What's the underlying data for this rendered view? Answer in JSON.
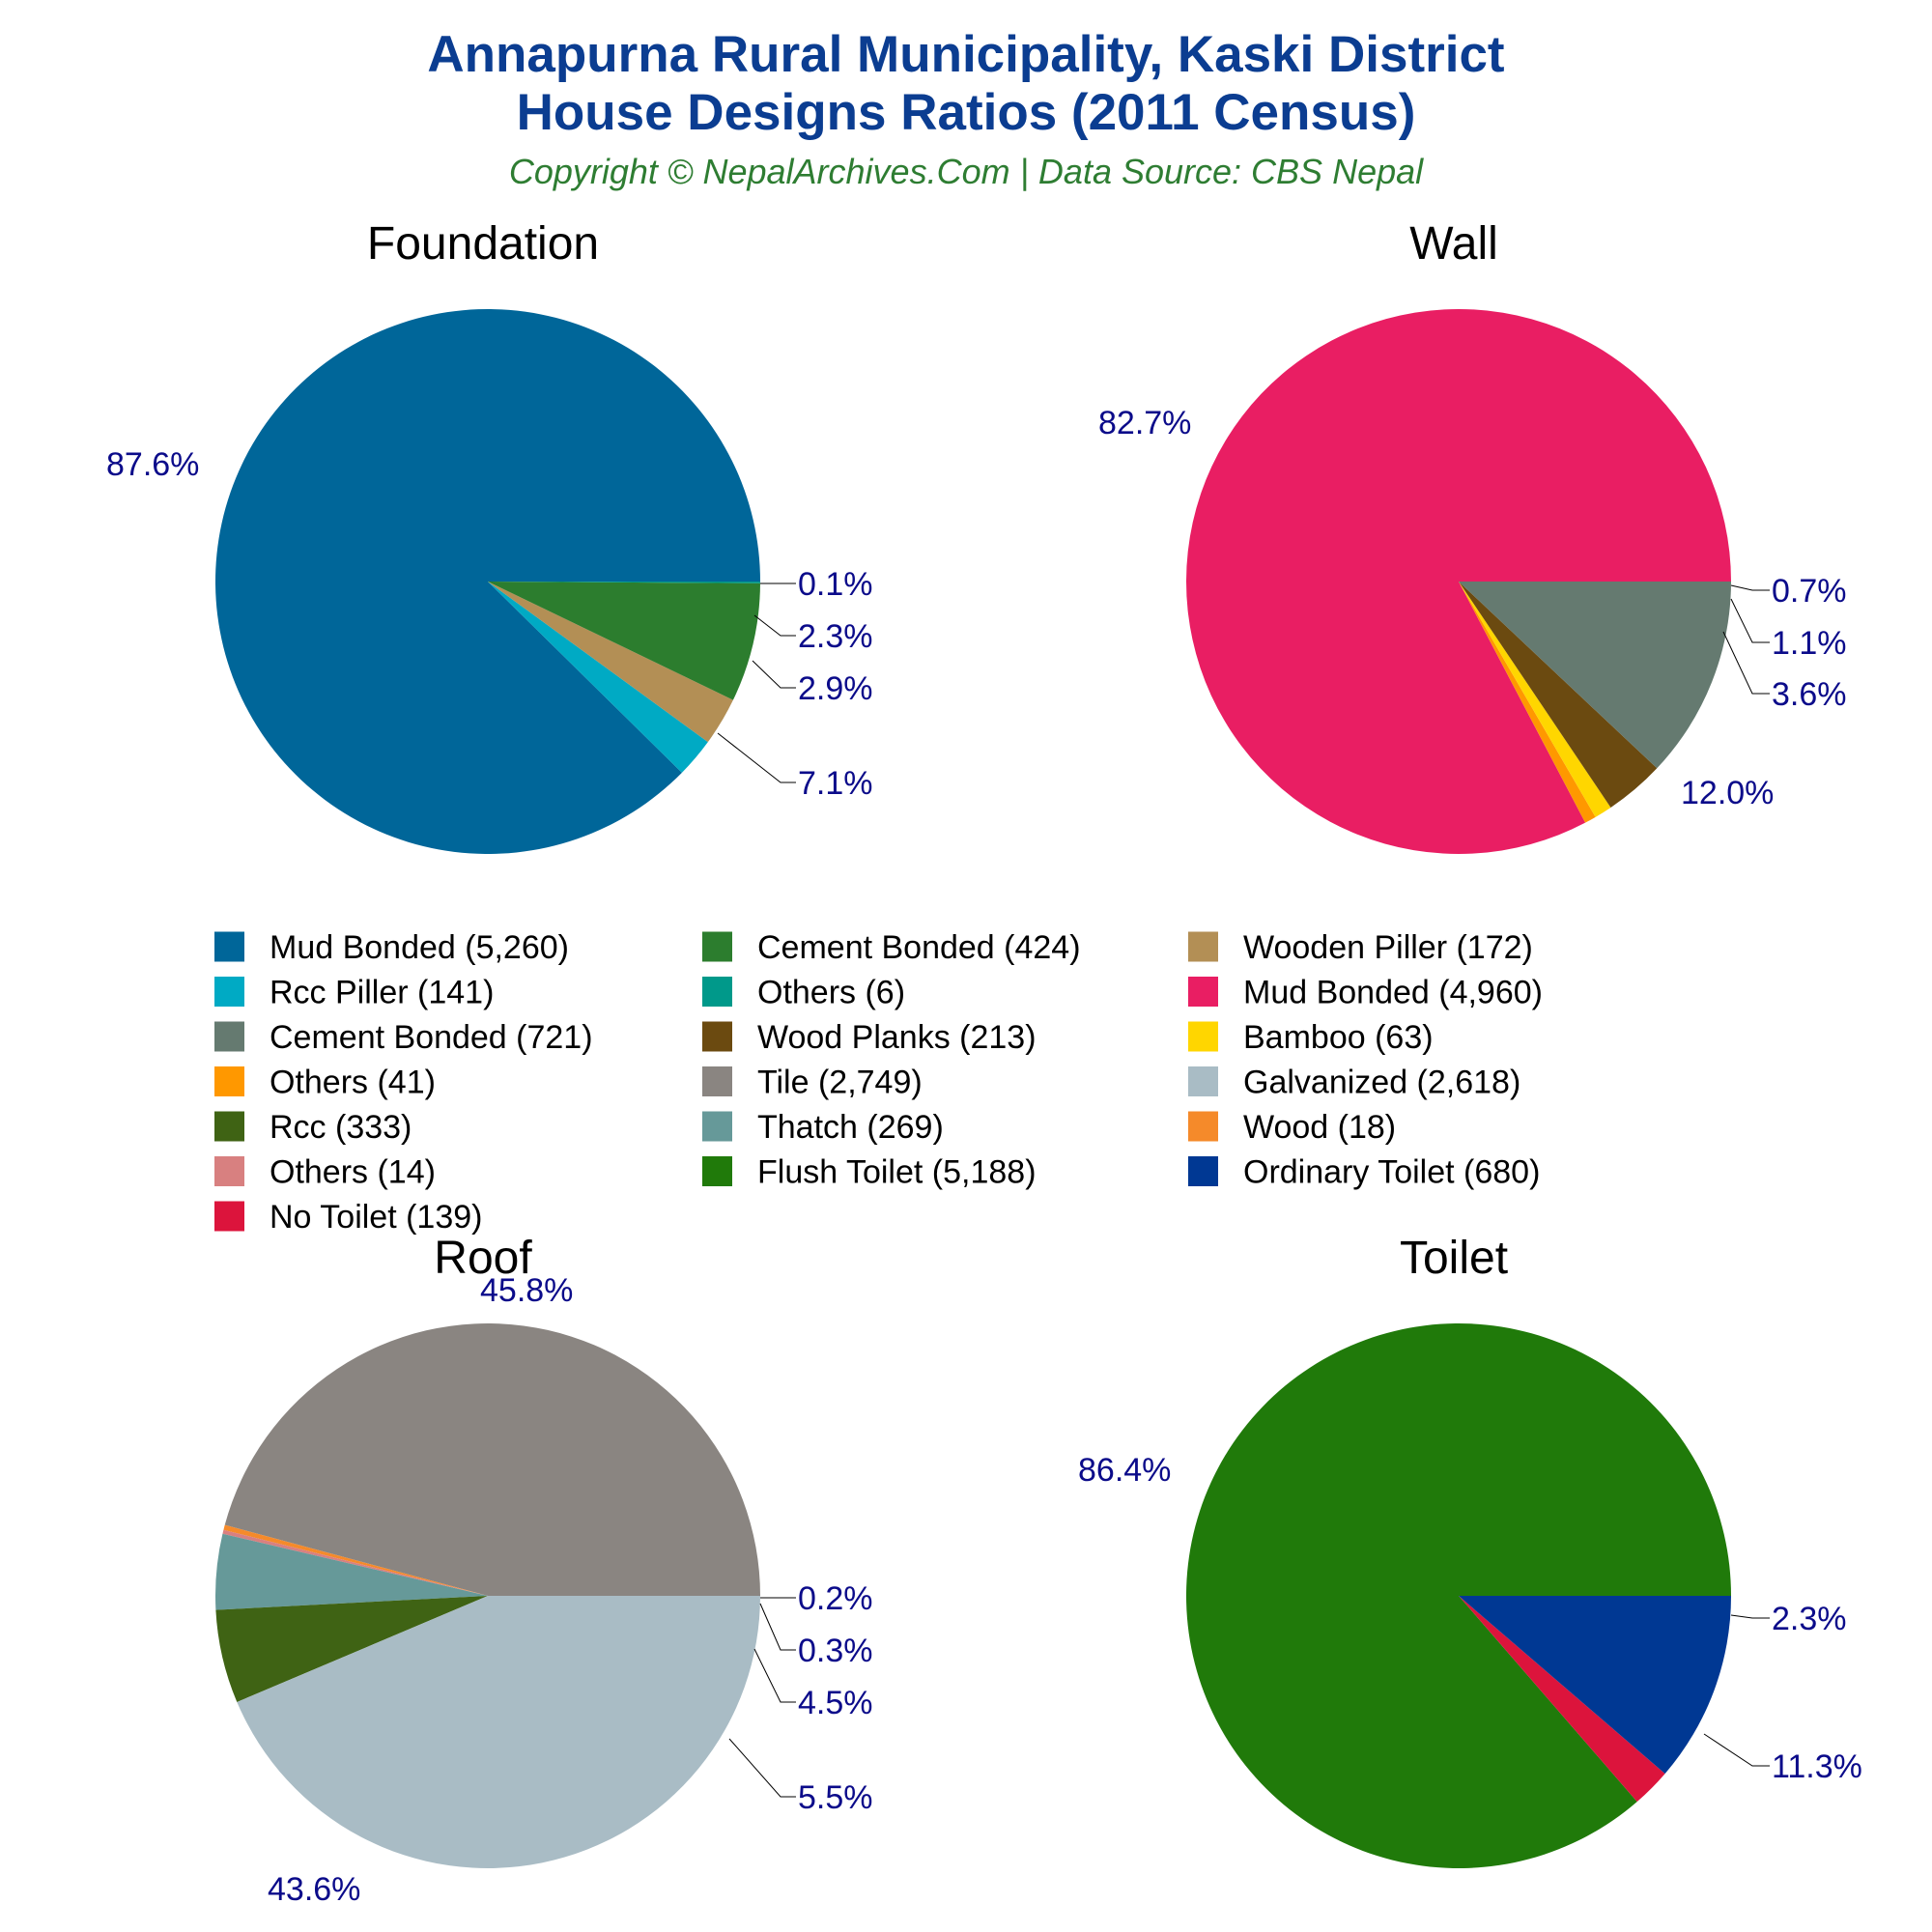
{
  "title_line1": "Annapurna Rural Municipality, Kaski District",
  "title_line2": "House Designs Ratios (2011 Census)",
  "subtitle": "Copyright © NepalArchives.Com | Data Source: CBS Nepal",
  "colors": {
    "title": "#0B3D91",
    "subtitle": "#2E7D32",
    "percent_label": "#0B0B8A"
  },
  "chart_data": [
    {
      "type": "pie",
      "title": "Foundation",
      "slices": [
        {
          "name": "Mud Bonded",
          "value": 5260,
          "percent": "87.6%",
          "color": "#006699"
        },
        {
          "name": "Rcc Piller",
          "value": 141,
          "percent": "2.3%",
          "color": "#00AAC4"
        },
        {
          "name": "Wooden Piller",
          "value": 172,
          "percent": "2.9%",
          "color": "#B38F55"
        },
        {
          "name": "Cement Bonded",
          "value": 424,
          "percent": "7.1%",
          "color": "#2C7D2E"
        },
        {
          "name": "Others",
          "value": 6,
          "percent": "0.1%",
          "color": "#00998A"
        }
      ]
    },
    {
      "type": "pie",
      "title": "Wall",
      "slices": [
        {
          "name": "Mud Bonded",
          "value": 4960,
          "percent": "82.7%",
          "color": "#E91E63"
        },
        {
          "name": "Others",
          "value": 41,
          "percent": "0.7%",
          "color": "#FF9800"
        },
        {
          "name": "Bamboo",
          "value": 63,
          "percent": "1.1%",
          "color": "#FFD600"
        },
        {
          "name": "Wood Planks",
          "value": 213,
          "percent": "3.6%",
          "color": "#6B4A10"
        },
        {
          "name": "Cement Bonded",
          "value": 721,
          "percent": "12.0%",
          "color": "#657A70"
        }
      ]
    },
    {
      "type": "pie",
      "title": "Roof",
      "slices": [
        {
          "name": "Tile",
          "value": 2749,
          "percent": "45.8%",
          "color": "#8A8581"
        },
        {
          "name": "Wood",
          "value": 18,
          "percent": "0.3%",
          "color": "#F58A2A"
        },
        {
          "name": "Others",
          "value": 14,
          "percent": "0.2%",
          "color": "#D88080"
        },
        {
          "name": "Thatch",
          "value": 269,
          "percent": "4.5%",
          "color": "#669999"
        },
        {
          "name": "Rcc",
          "value": 333,
          "percent": "5.5%",
          "color": "#3F6314"
        },
        {
          "name": "Galvanized",
          "value": 2618,
          "percent": "43.6%",
          "color": "#A9BCC5"
        }
      ]
    },
    {
      "type": "pie",
      "title": "Toilet",
      "slices": [
        {
          "name": "Flush Toilet",
          "value": 5188,
          "percent": "86.4%",
          "color": "#207A0A"
        },
        {
          "name": "No Toilet",
          "value": 139,
          "percent": "2.3%",
          "color": "#DC143C"
        },
        {
          "name": "Ordinary Toilet",
          "value": 680,
          "percent": "11.3%",
          "color": "#003893"
        }
      ]
    }
  ],
  "legend": [
    {
      "label": "Mud Bonded (5,260)",
      "color": "#006699"
    },
    {
      "label": "Cement Bonded (424)",
      "color": "#2C7D2E"
    },
    {
      "label": "Wooden Piller (172)",
      "color": "#B38F55"
    },
    {
      "label": "Rcc Piller (141)",
      "color": "#00AAC4"
    },
    {
      "label": "Others (6)",
      "color": "#00998A"
    },
    {
      "label": "Mud Bonded (4,960)",
      "color": "#E91E63"
    },
    {
      "label": "Cement Bonded (721)",
      "color": "#657A70"
    },
    {
      "label": "Wood Planks (213)",
      "color": "#6B4A10"
    },
    {
      "label": "Bamboo (63)",
      "color": "#FFD600"
    },
    {
      "label": "Others (41)",
      "color": "#FF9800"
    },
    {
      "label": "Tile (2,749)",
      "color": "#8A8581"
    },
    {
      "label": "Galvanized (2,618)",
      "color": "#A9BCC5"
    },
    {
      "label": "Rcc (333)",
      "color": "#3F6314"
    },
    {
      "label": "Thatch (269)",
      "color": "#669999"
    },
    {
      "label": "Wood (18)",
      "color": "#F58A2A"
    },
    {
      "label": "Others (14)",
      "color": "#D88080"
    },
    {
      "label": "Flush Toilet (5,188)",
      "color": "#207A0A"
    },
    {
      "label": "Ordinary Toilet (680)",
      "color": "#003893"
    },
    {
      "label": "No Toilet (139)",
      "color": "#DC143C"
    }
  ]
}
